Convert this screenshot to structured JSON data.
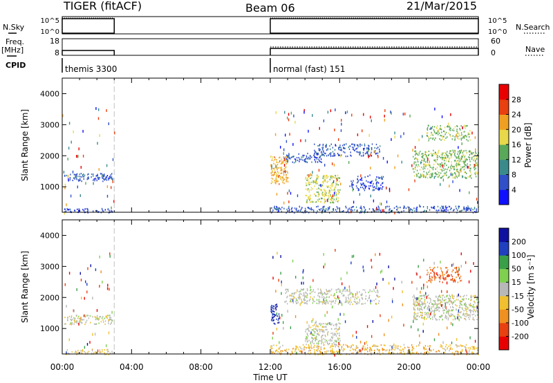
{
  "header": {
    "title": "TIGER (fitACF)",
    "beam": "Beam 06",
    "date": "21/Mar/2015"
  },
  "status_panel": {
    "left_labels": {
      "nsky": "N.Sky",
      "freq": "Freq.",
      "freq_unit": "[MHz]",
      "cpid": "CPID"
    },
    "right_labels": {
      "nsearch": "N.Search",
      "nave": "Nave"
    },
    "nsky_ticks": [
      "10^5",
      "10^0"
    ],
    "nsearch_ticks": [
      "10^5",
      "10^0"
    ],
    "freq_ticks": [
      "18",
      "8"
    ],
    "nave_ticks": [
      "60",
      "0"
    ],
    "cpid_segments": [
      {
        "label": "themis 3300",
        "start_hr": 0.0,
        "end_hr": 3.0
      },
      {
        "label": "normal (fast) 151",
        "start_hr": 12.0,
        "end_hr": 24.0
      }
    ]
  },
  "chart_data": [
    {
      "type": "heatmap",
      "name": "power",
      "ylabel": "Slant Range [km]",
      "xlabel": "",
      "y_ticks": [
        "4000",
        "3000",
        "2000",
        "1000"
      ],
      "ylim": [
        180,
        4500
      ],
      "xlim_hr": [
        0,
        24
      ],
      "colorbar": {
        "label": "Power [dB]",
        "ticks": [
          "28",
          "24",
          "20",
          "16",
          "12",
          "8",
          "4"
        ],
        "range": [
          0,
          30
        ],
        "colors": [
          "#1010ff",
          "#3050c8",
          "#3a8a8c",
          "#5aa85a",
          "#e8d84a",
          "#f0a020",
          "#e84010",
          "#e80000"
        ]
      },
      "segments": [
        {
          "start_hr": 0.0,
          "end_hr": 3.0
        },
        {
          "start_hr": 12.0,
          "end_hr": 24.0
        }
      ],
      "features": [
        {
          "t0": 0.1,
          "t1": 2.9,
          "r0": 1200,
          "r1": 1450,
          "value": 6,
          "density": 0.8
        },
        {
          "t0": 0.1,
          "t1": 2.9,
          "r0": 180,
          "r1": 320,
          "value": 5,
          "density": 0.7
        },
        {
          "t0": 12.0,
          "t1": 13.0,
          "r0": 1100,
          "r1": 2000,
          "value": 20,
          "density": 0.8
        },
        {
          "t0": 12.8,
          "t1": 15.0,
          "r0": 1800,
          "r1": 2100,
          "value": 6,
          "density": 0.7
        },
        {
          "t0": 14.5,
          "t1": 18.3,
          "r0": 2000,
          "r1": 2400,
          "value": 6,
          "density": 0.6
        },
        {
          "t0": 14.0,
          "t1": 16.0,
          "r0": 500,
          "r1": 1400,
          "value": 16,
          "density": 0.7
        },
        {
          "t0": 16.5,
          "t1": 18.5,
          "r0": 900,
          "r1": 1400,
          "value": 5,
          "density": 0.5
        },
        {
          "t0": 20.2,
          "t1": 24.0,
          "r0": 1300,
          "r1": 2200,
          "value": 14,
          "density": 0.7
        },
        {
          "t0": 21.0,
          "t1": 23.5,
          "r0": 2500,
          "r1": 3000,
          "value": 14,
          "density": 0.6
        },
        {
          "t0": 12.0,
          "t1": 24.0,
          "r0": 180,
          "r1": 400,
          "value": 6,
          "density": 0.6
        }
      ]
    },
    {
      "type": "heatmap",
      "name": "velocity",
      "ylabel": "Slant Range [km]",
      "xlabel": "Time UT",
      "x_ticks": [
        "00:00",
        "04:00",
        "08:00",
        "12:00",
        "16:00",
        "20:00",
        "00:00"
      ],
      "y_ticks": [
        "4000",
        "3000",
        "2000",
        "1000"
      ],
      "ylim": [
        180,
        4500
      ],
      "xlim_hr": [
        0,
        24
      ],
      "colorbar": {
        "label": "Velocity [m s⁻¹]",
        "ticks": [
          "200",
          "100",
          "50",
          "15",
          "-15",
          "-50",
          "-100",
          "-200"
        ],
        "range": [
          -250,
          250
        ],
        "colors": [
          "#e80000",
          "#e84010",
          "#f09020",
          "#f0c030",
          "#b8b8b8",
          "#80d050",
          "#3aa048",
          "#2040c0",
          "#1010a0"
        ]
      },
      "segments": [
        {
          "start_hr": 0.0,
          "end_hr": 3.0
        },
        {
          "start_hr": 12.0,
          "end_hr": 24.0
        }
      ],
      "features": [
        {
          "t0": 0.1,
          "t1": 2.9,
          "r0": 1150,
          "r1": 1450,
          "value": 0,
          "density": 0.7
        },
        {
          "t0": 0.1,
          "t1": 2.9,
          "r0": 180,
          "r1": 350,
          "value": -40,
          "density": 0.6
        },
        {
          "t0": 12.0,
          "t1": 12.5,
          "r0": 1100,
          "r1": 1800,
          "value": 200,
          "density": 0.8
        },
        {
          "t0": 12.8,
          "t1": 18.3,
          "r0": 1800,
          "r1": 2300,
          "value": 0,
          "density": 0.6
        },
        {
          "t0": 14.0,
          "t1": 16.0,
          "r0": 500,
          "r1": 1200,
          "value": 0,
          "density": 0.7
        },
        {
          "t0": 20.2,
          "t1": 24.0,
          "r0": 1300,
          "r1": 2100,
          "value": 0,
          "density": 0.8
        },
        {
          "t0": 21.0,
          "t1": 23.0,
          "r0": 2500,
          "r1": 3000,
          "value": -150,
          "density": 0.6
        },
        {
          "t0": 12.0,
          "t1": 24.0,
          "r0": 180,
          "r1": 500,
          "value": -60,
          "density": 0.6
        }
      ]
    }
  ]
}
